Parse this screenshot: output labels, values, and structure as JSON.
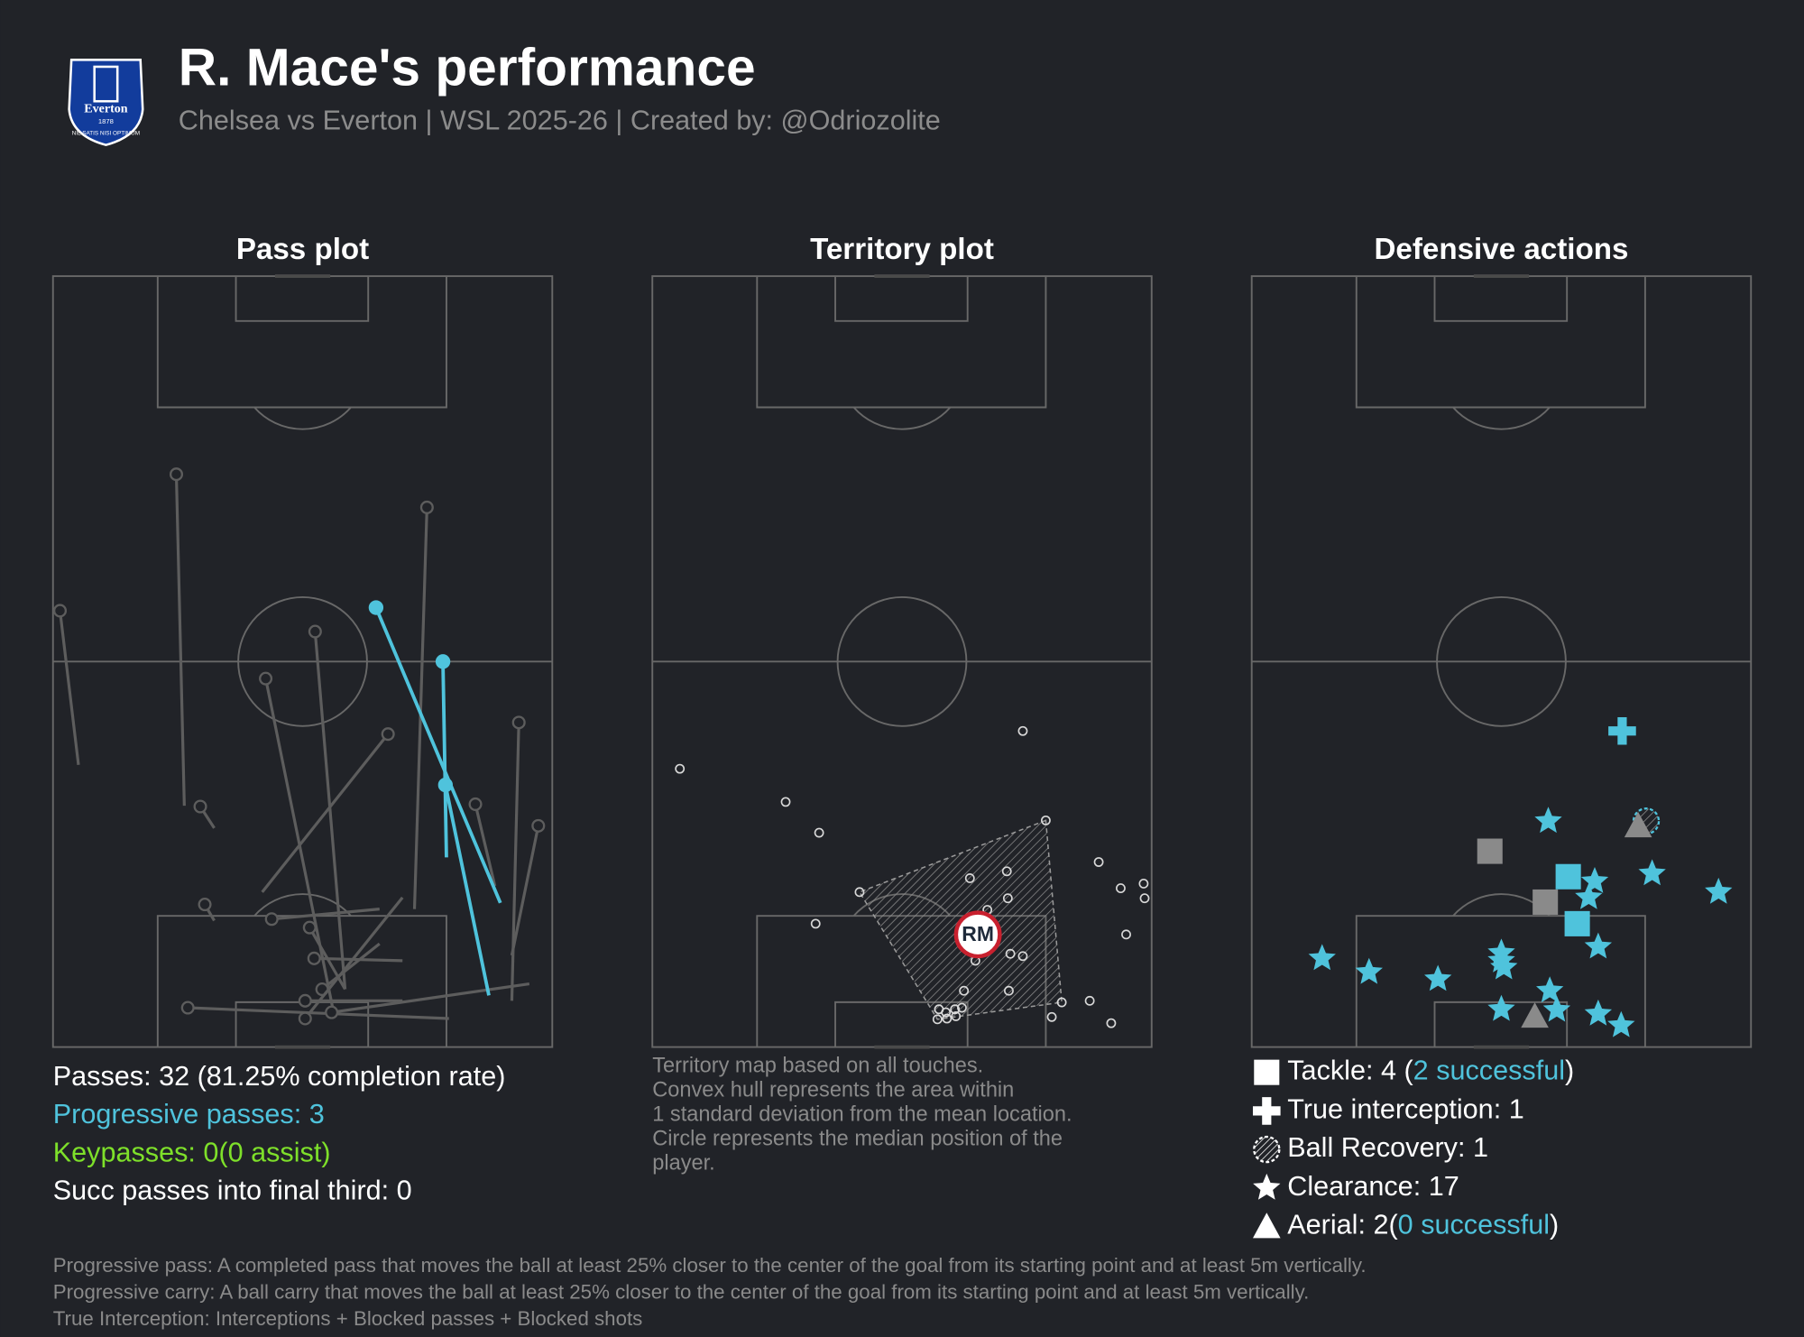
{
  "header": {
    "title": "R. Mace's performance",
    "subtitle": "Chelsea vs Everton | WSL 2025-26 | Created by: @Odriozolite",
    "logo": {
      "name": "Everton",
      "year": "1878",
      "motto": "NIL SATIS NISI OPTIMUM"
    }
  },
  "chart_data": [
    {
      "type": "pass-map",
      "title": "Pass plot",
      "xlim": [
        0,
        100
      ],
      "ylim": [
        0,
        100
      ],
      "passes": {
        "color": "#5d5d5d",
        "x": [
          26.3,
          5.1,
          58.5,
          56.2,
          41.9,
          32.3,
          72.4,
          91.9,
          91.9,
          88.5,
          32.3,
          65.4,
          58.5,
          70.0,
          79.3,
          70.0,
          95.4,
          65.4,
          70.0
        ],
        "y": [
          31.3,
          36.6,
          7.5,
          4.5,
          20.1,
          28.4,
          17.9,
          6.0,
          11.9,
          20.9,
          16.4,
          17.9,
          7.5,
          11.2,
          3.7,
          6.0,
          8.2,
          13.4,
          19.4
        ],
        "x_end": [
          24.7,
          1.4,
          52.5,
          42.6,
          67.1,
          29.5,
          74.9,
          93.3,
          97.2,
          84.6,
          30.4,
          43.8,
          51.4,
          52.3,
          27.0,
          50.5,
          55.8,
          53.9,
          50.5
        ],
        "y_end": [
          74.3,
          56.6,
          53.9,
          47.8,
          40.6,
          31.2,
          70.0,
          42.1,
          28.7,
          31.5,
          18.5,
          16.6,
          15.5,
          11.5,
          5.1,
          6.0,
          4.5,
          7.5,
          3.7
        ]
      },
      "progressive_passes": {
        "color": "#4fc3dc",
        "x": [
          89.6,
          78.8,
          87.3
        ],
        "y": [
          18.7,
          24.6,
          6.7
        ],
        "x_end": [
          64.7,
          78.1,
          78.6
        ],
        "y_end": [
          57.0,
          50.0,
          34.0
        ]
      },
      "stats": [
        {
          "text": "Passes: 32 (81.25% completion rate)",
          "color": "#ffffff"
        },
        {
          "text": "Progressive passes: 3",
          "color": "#4fc3dc"
        },
        {
          "text": "Keypasses: 0(0 assist)",
          "color": "#7ee02a"
        },
        {
          "text": "Succ passes into final third: 0",
          "color": "#ffffff"
        }
      ]
    },
    {
      "type": "territory",
      "title": "Territory plot",
      "xlim": [
        0,
        100
      ],
      "ylim": [
        0,
        100
      ],
      "touches": {
        "color": "#d8d8d8",
        "x": [
          5.5,
          26.7,
          33.4,
          74.2,
          32.7,
          41.5,
          78.8,
          63.6,
          71.0,
          71.2,
          67.1,
          71.7,
          74.2,
          64.7,
          62.4,
          71.4,
          89.4,
          93.8,
          98.4,
          98.6,
          94.9,
          82.0,
          87.6,
          80.0,
          91.9,
          57.4,
          58.8,
          60.6,
          62.0,
          57.1,
          59.0,
          60.8
        ],
        "y": [
          36.1,
          31.8,
          27.8,
          41.0,
          16.0,
          20.1,
          29.4,
          21.9,
          22.8,
          19.3,
          17.8,
          12.1,
          11.8,
          11.2,
          7.3,
          7.3,
          24.0,
          20.6,
          21.2,
          19.3,
          14.6,
          5.8,
          6.0,
          3.9,
          3.1,
          4.9,
          4.5,
          4.9,
          5.1,
          3.6,
          3.7,
          4.0
        ]
      },
      "hull": {
        "x": [
          78.8,
          41.5,
          57.1,
          82.0
        ],
        "y": [
          29.4,
          20.1,
          3.6,
          5.8
        ]
      },
      "median": {
        "x": 65.2,
        "y": 14.6,
        "label": "RM",
        "color": "#c8202e"
      },
      "caption": [
        "Territory map based on all touches.",
        "Convex hull represents the area within",
        "1 standard deviation from the mean location.",
        "Circle represents the median position of the",
        "player."
      ]
    },
    {
      "type": "defensive",
      "title": "Defensive actions",
      "xlim": [
        0,
        100
      ],
      "ylim": [
        0,
        100
      ],
      "success_color": "#4fc3dc",
      "fail_color": "#8a8a8a",
      "actions": [
        {
          "marker": "square",
          "x": [
            47.7,
            58.8,
            63.4,
            65.2
          ],
          "y": [
            25.4,
            18.8,
            22.1,
            16.0
          ],
          "successful": [
            false,
            false,
            true,
            true
          ]
        },
        {
          "marker": "cross",
          "x": [
            74.2
          ],
          "y": [
            41.0
          ],
          "successful": [
            true
          ]
        },
        {
          "marker": "hatched-circle",
          "x": [
            79.0
          ],
          "y": [
            29.3
          ],
          "successful": [
            true
          ]
        },
        {
          "marker": "star",
          "x": [
            59.4,
            80.2,
            93.5,
            68.7,
            67.5,
            69.4,
            14.1,
            23.5,
            37.3,
            50.0,
            50.5,
            59.7,
            50.0,
            61.1,
            69.4,
            74.0,
            50.0
          ],
          "y": [
            29.3,
            22.5,
            20.1,
            21.5,
            19.4,
            13.0,
            11.5,
            9.7,
            8.8,
            12.2,
            10.3,
            7.3,
            4.9,
            4.8,
            4.3,
            2.8,
            11.2
          ],
          "successful": [
            true,
            true,
            true,
            true,
            true,
            true,
            true,
            true,
            true,
            true,
            true,
            true,
            true,
            true,
            true,
            true,
            true
          ]
        },
        {
          "marker": "triangle",
          "x": [
            77.4,
            56.7
          ],
          "y": [
            28.7,
            4.0
          ],
          "successful": [
            false,
            false
          ]
        }
      ],
      "legend": [
        {
          "marker": "square",
          "text": "Tackle: 4 (",
          "highlight": "2 successful",
          "suffix": ")"
        },
        {
          "marker": "cross",
          "text": "True interception: 1"
        },
        {
          "marker": "hatched-circle",
          "text": "Ball Recovery: 1"
        },
        {
          "marker": "star",
          "text": "Clearance: 17"
        },
        {
          "marker": "triangle",
          "text": "Aerial: 2(",
          "highlight": "0 successful",
          "suffix": ")"
        }
      ]
    }
  ],
  "footnotes": [
    "Progressive pass: A completed pass that moves the ball at least 25% closer to the center of the goal from its starting point and at least 5m vertically.",
    "Progressive carry: A ball carry that moves the ball at least 25% closer to the center of the goal from its starting point and at least 5m vertically.",
    "True Interception: Interceptions + Blocked passes + Blocked shots"
  ]
}
